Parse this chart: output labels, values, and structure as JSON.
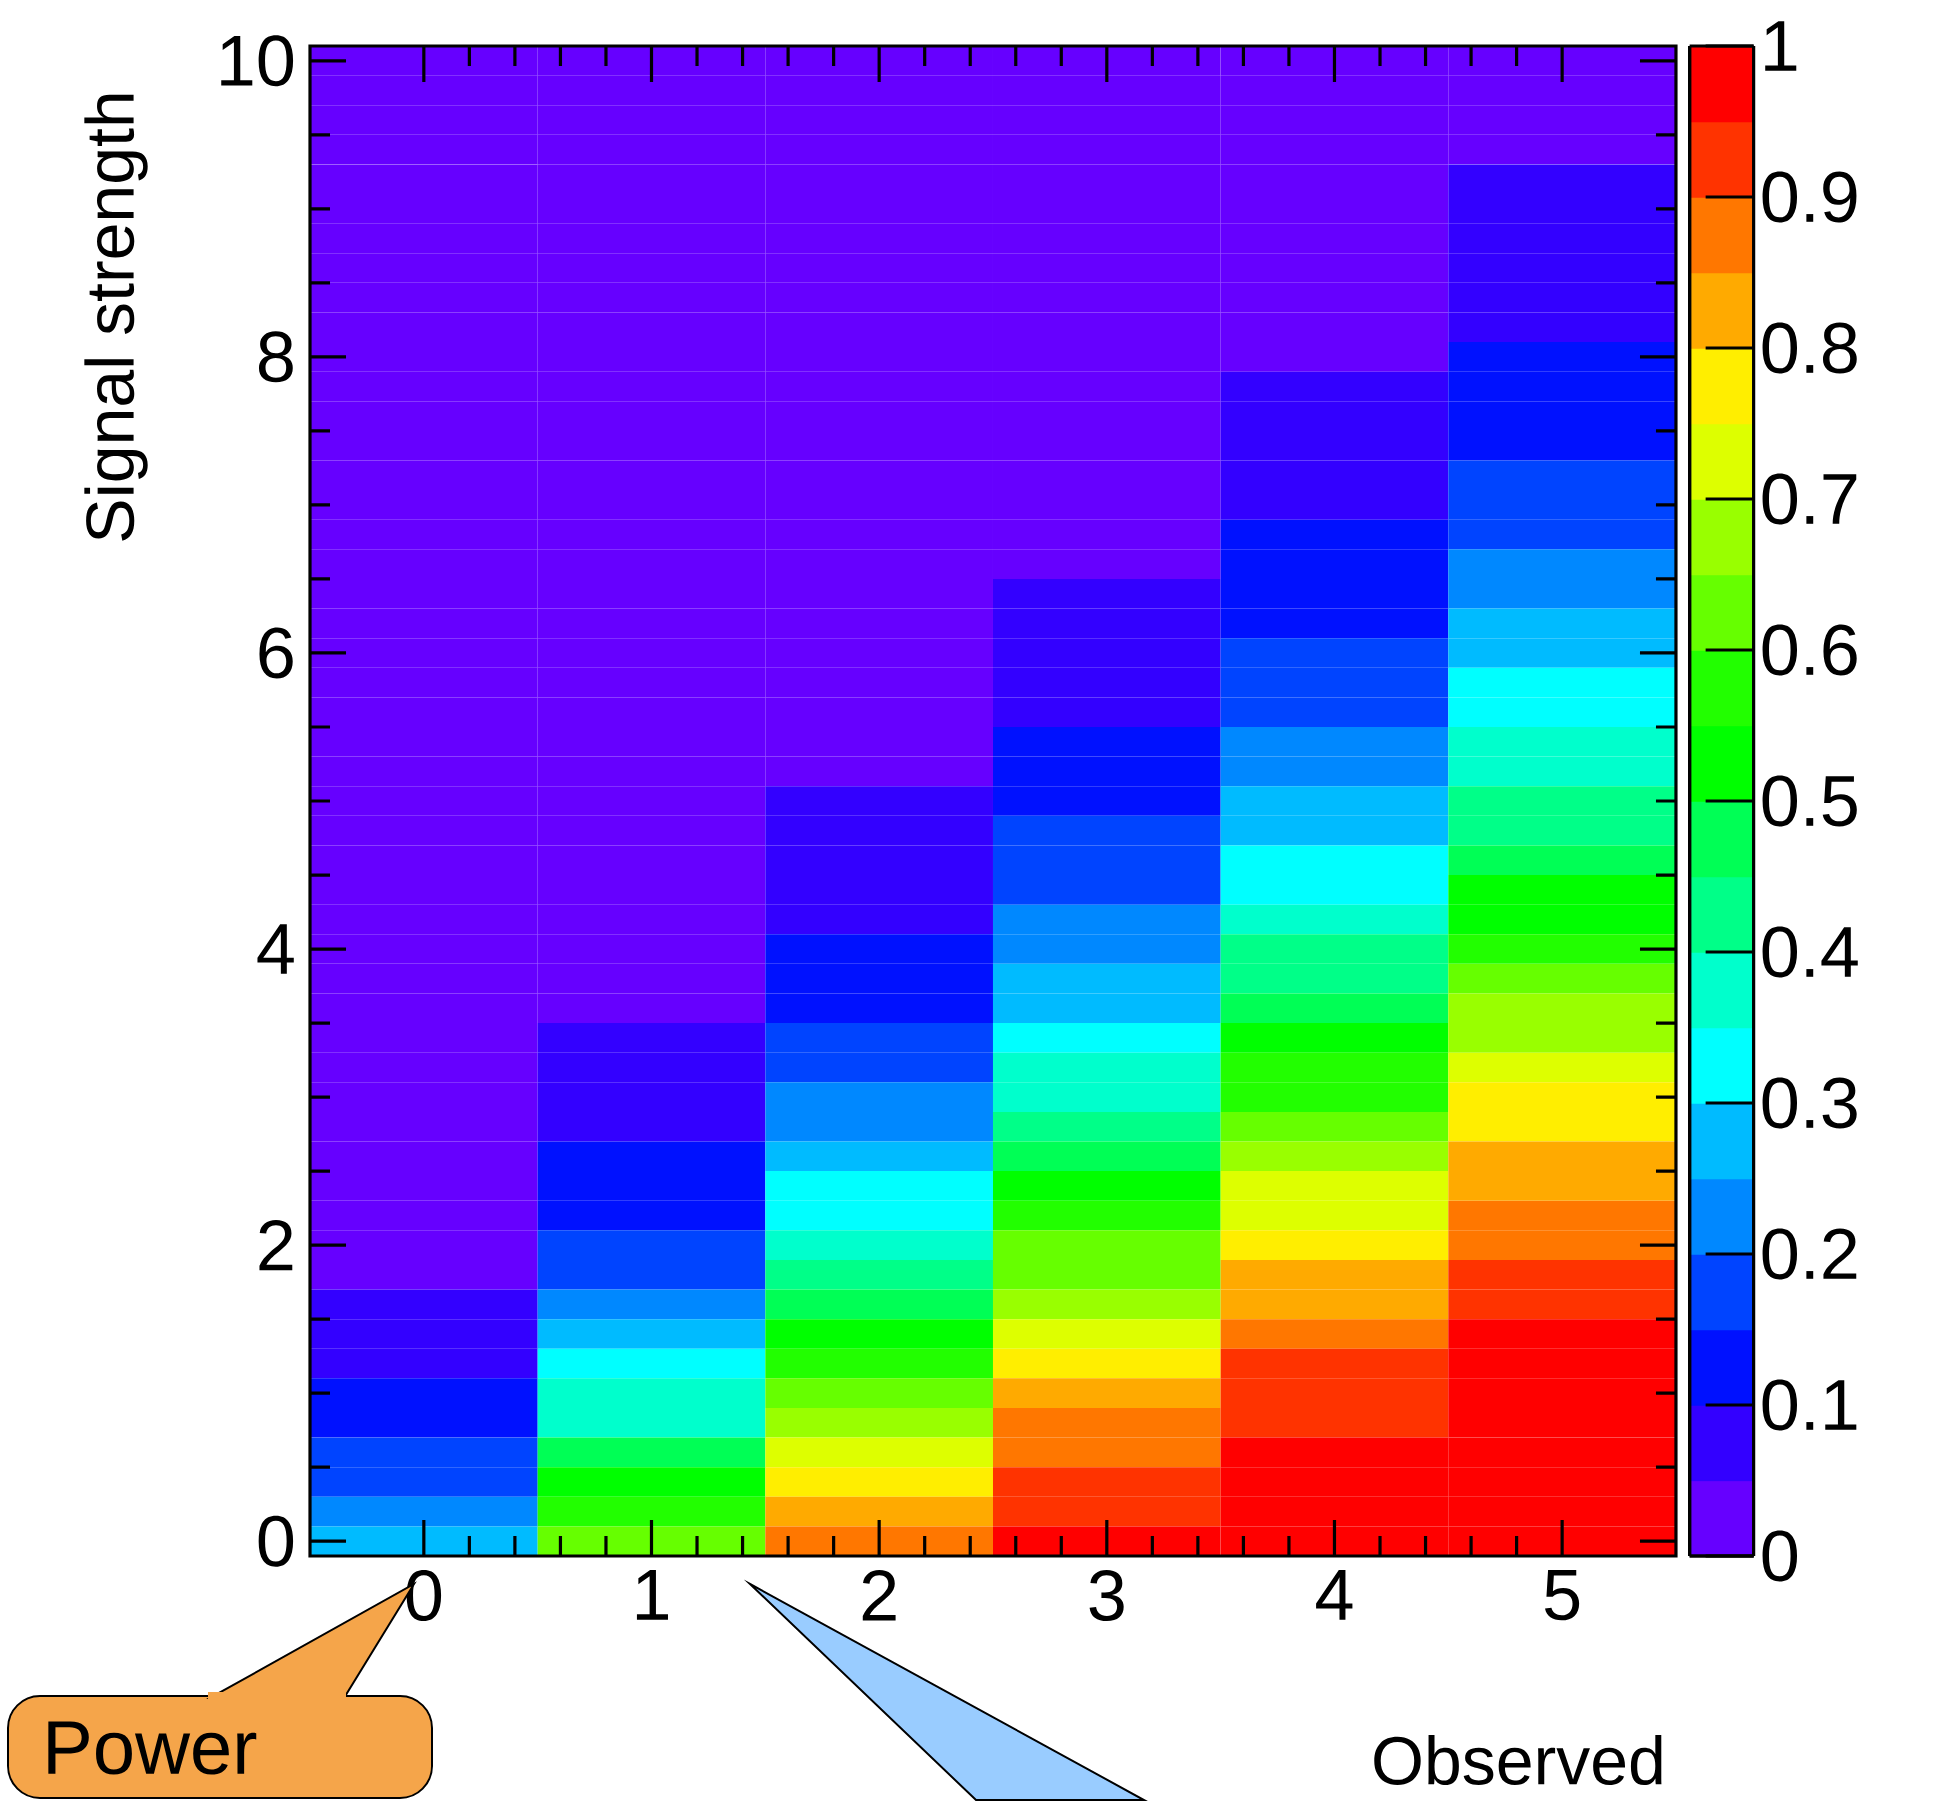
{
  "chart_data": {
    "type": "heatmap",
    "xlabel": "Observed",
    "ylabel": "Signal strength",
    "categories": [
      "0",
      "1",
      "2",
      "3",
      "4",
      "5"
    ],
    "y_categories": [
      "10",
      null,
      null,
      null,
      null,
      null,
      null,
      null,
      null,
      null,
      "8",
      null,
      null,
      null,
      null,
      null,
      null,
      null,
      null,
      null,
      "6",
      null,
      null,
      null,
      null,
      null,
      null,
      null,
      null,
      null,
      "4",
      null,
      null,
      null,
      null,
      null,
      null,
      null,
      null,
      null,
      "2",
      null,
      null,
      null,
      null,
      null,
      null,
      null,
      null,
      null,
      "0"
    ],
    "clim": [
      0,
      1
    ],
    "cticks": [
      0,
      0.1,
      0.2,
      0.3,
      0.4,
      0.5,
      0.6,
      0.7,
      0.8,
      0.9,
      1
    ],
    "colors": [
      "#6600ff",
      "#3300ff",
      "#0011ff",
      "#0044ff",
      "#0088ff",
      "#00bbff",
      "#00ffff",
      "#00ffcc",
      "#00ff88",
      "#00ff55",
      "#00ff00",
      "#22ff00",
      "#66ff00",
      "#99ff00",
      "#ddff00",
      "#ffee00",
      "#ffaa00",
      "#ff7700",
      "#ff3300",
      "#ff0000"
    ],
    "cells": [
      [
        0.025,
        0.025,
        0.025,
        0.025,
        0.025,
        0.025
      ],
      [
        0.025,
        0.025,
        0.025,
        0.025,
        0.025,
        0.025
      ],
      [
        0.025,
        0.025,
        0.025,
        0.025,
        0.025,
        0.025
      ],
      [
        0.025,
        0.025,
        0.025,
        0.025,
        0.025,
        0.025
      ],
      [
        0.025,
        0.025,
        0.025,
        0.025,
        0.025,
        0.075
      ],
      [
        0.025,
        0.025,
        0.025,
        0.025,
        0.025,
        0.075
      ],
      [
        0.025,
        0.025,
        0.025,
        0.025,
        0.025,
        0.075
      ],
      [
        0.025,
        0.025,
        0.025,
        0.025,
        0.025,
        0.075
      ],
      [
        0.025,
        0.025,
        0.025,
        0.025,
        0.025,
        0.075
      ],
      [
        0.025,
        0.025,
        0.025,
        0.025,
        0.025,
        0.075
      ],
      [
        0.025,
        0.025,
        0.025,
        0.025,
        0.025,
        0.125
      ],
      [
        0.025,
        0.025,
        0.025,
        0.025,
        0.075,
        0.125
      ],
      [
        0.025,
        0.025,
        0.025,
        0.025,
        0.075,
        0.125
      ],
      [
        0.025,
        0.025,
        0.025,
        0.025,
        0.075,
        0.125
      ],
      [
        0.025,
        0.025,
        0.025,
        0.025,
        0.075,
        0.175
      ],
      [
        0.025,
        0.025,
        0.025,
        0.025,
        0.075,
        0.175
      ],
      [
        0.025,
        0.025,
        0.025,
        0.025,
        0.125,
        0.175
      ],
      [
        0.025,
        0.025,
        0.025,
        0.025,
        0.125,
        0.225
      ],
      [
        0.025,
        0.025,
        0.025,
        0.075,
        0.125,
        0.225
      ],
      [
        0.025,
        0.025,
        0.025,
        0.075,
        0.125,
        0.275
      ],
      [
        0.025,
        0.025,
        0.025,
        0.075,
        0.175,
        0.275
      ],
      [
        0.025,
        0.025,
        0.025,
        0.075,
        0.175,
        0.325
      ],
      [
        0.025,
        0.025,
        0.025,
        0.075,
        0.175,
        0.325
      ],
      [
        0.025,
        0.025,
        0.025,
        0.125,
        0.225,
        0.375
      ],
      [
        0.025,
        0.025,
        0.025,
        0.125,
        0.225,
        0.375
      ],
      [
        0.025,
        0.025,
        0.075,
        0.125,
        0.275,
        0.425
      ],
      [
        0.025,
        0.025,
        0.075,
        0.175,
        0.275,
        0.425
      ],
      [
        0.025,
        0.025,
        0.075,
        0.175,
        0.325,
        0.475
      ],
      [
        0.025,
        0.025,
        0.075,
        0.175,
        0.325,
        0.525
      ],
      [
        0.025,
        0.025,
        0.075,
        0.225,
        0.375,
        0.525
      ],
      [
        0.025,
        0.025,
        0.125,
        0.225,
        0.425,
        0.575
      ],
      [
        0.025,
        0.025,
        0.125,
        0.275,
        0.425,
        0.625
      ],
      [
        0.025,
        0.025,
        0.125,
        0.275,
        0.475,
        0.675
      ],
      [
        0.025,
        0.075,
        0.175,
        0.325,
        0.525,
        0.675
      ],
      [
        0.025,
        0.075,
        0.175,
        0.375,
        0.575,
        0.725
      ],
      [
        0.025,
        0.075,
        0.225,
        0.375,
        0.575,
        0.775
      ],
      [
        0.025,
        0.075,
        0.225,
        0.425,
        0.625,
        0.775
      ],
      [
        0.025,
        0.125,
        0.275,
        0.475,
        0.675,
        0.825
      ],
      [
        0.025,
        0.125,
        0.325,
        0.525,
        0.725,
        0.825
      ],
      [
        0.025,
        0.125,
        0.325,
        0.575,
        0.725,
        0.875
      ],
      [
        0.025,
        0.175,
        0.375,
        0.625,
        0.775,
        0.875
      ],
      [
        0.025,
        0.175,
        0.425,
        0.625,
        0.825,
        0.925
      ],
      [
        0.075,
        0.225,
        0.475,
        0.675,
        0.825,
        0.925
      ],
      [
        0.075,
        0.275,
        0.525,
        0.725,
        0.875,
        0.975
      ],
      [
        0.075,
        0.325,
        0.575,
        0.775,
        0.925,
        0.975
      ],
      [
        0.125,
        0.375,
        0.625,
        0.825,
        0.925,
        0.975
      ],
      [
        0.125,
        0.375,
        0.675,
        0.875,
        0.925,
        0.975
      ],
      [
        0.175,
        0.475,
        0.725,
        0.875,
        0.975,
        0.975
      ],
      [
        0.175,
        0.525,
        0.775,
        0.925,
        0.975,
        0.975
      ],
      [
        0.225,
        0.575,
        0.825,
        0.925,
        0.975,
        0.975
      ],
      [
        0.275,
        0.625,
        0.875,
        0.975,
        0.975,
        0.975
      ]
    ],
    "annotations": [
      "Power"
    ]
  }
}
